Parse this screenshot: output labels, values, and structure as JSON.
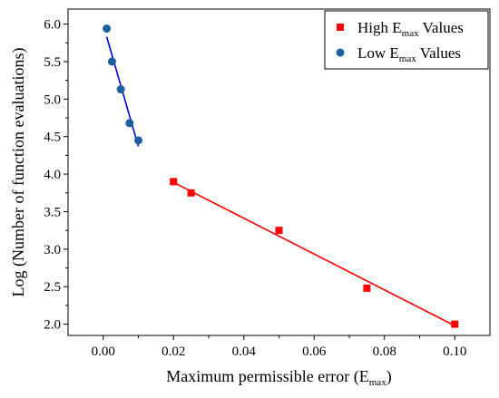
{
  "chart_data": {
    "type": "scatter",
    "xlabel": {
      "main": "Maximum permissible error (E",
      "sub": "max",
      "tail": ")"
    },
    "ylabel": "Log (Number of function evaluations)",
    "xlim": [
      -0.01,
      0.11
    ],
    "ylim": [
      1.85,
      6.2
    ],
    "xticks": [
      0.0,
      0.02,
      0.04,
      0.06,
      0.08,
      0.1
    ],
    "xtick_labels": [
      "0.00",
      "0.02",
      "0.04",
      "0.06",
      "0.08",
      "0.10"
    ],
    "yticks": [
      2.0,
      2.5,
      3.0,
      3.5,
      4.0,
      4.5,
      5.0,
      5.5,
      6.0
    ],
    "ytick_labels": [
      "2.0",
      "2.5",
      "3.0",
      "3.5",
      "4.0",
      "4.5",
      "5.0",
      "5.5",
      "6.0"
    ],
    "legend_position": "top-right",
    "grid": false,
    "series": [
      {
        "name": {
          "main": "High E",
          "sub": "max",
          "tail": " Values"
        },
        "marker": "square",
        "color": "#ff0000",
        "points": [
          {
            "x": 0.02,
            "y": 3.9
          },
          {
            "x": 0.025,
            "y": 3.75
          },
          {
            "x": 0.05,
            "y": 3.25
          },
          {
            "x": 0.075,
            "y": 2.48
          },
          {
            "x": 0.1,
            "y": 2.0
          }
        ],
        "fit": {
          "x": [
            0.02,
            0.1
          ],
          "y": [
            3.89,
            1.98
          ]
        }
      },
      {
        "name": {
          "main": "Low E",
          "sub": "max",
          "tail": " Values"
        },
        "marker": "circle",
        "color": "#1f5fa0",
        "line_color": "#0000dd",
        "points": [
          {
            "x": 0.001,
            "y": 5.94
          },
          {
            "x": 0.0025,
            "y": 5.5
          },
          {
            "x": 0.005,
            "y": 5.13
          },
          {
            "x": 0.0075,
            "y": 4.68
          },
          {
            "x": 0.01,
            "y": 4.45
          }
        ],
        "fit": {
          "x": [
            0.001,
            0.01
          ],
          "y": [
            5.83,
            4.37
          ]
        }
      }
    ]
  }
}
